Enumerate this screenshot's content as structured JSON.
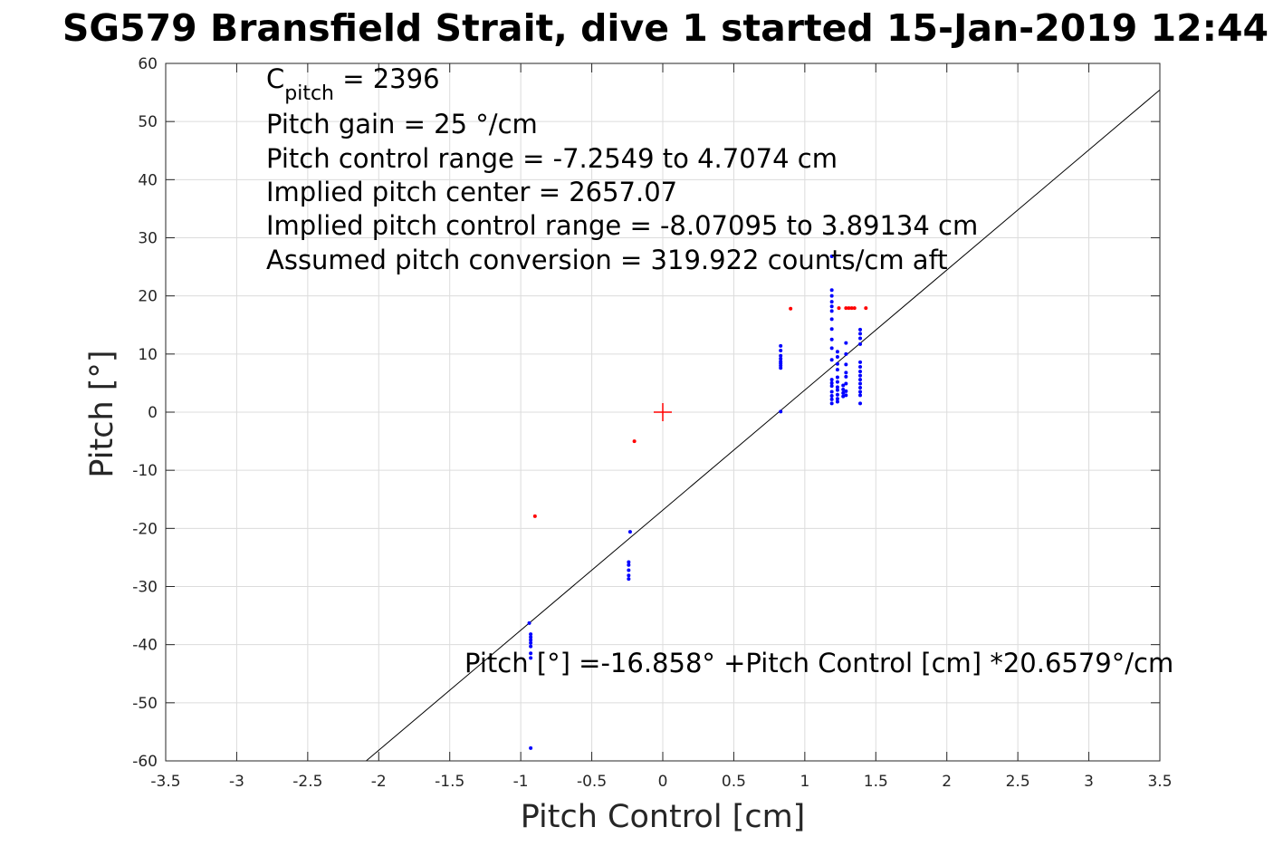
{
  "chart_data": {
    "type": "scatter",
    "title": "SG579 Bransfield Strait, dive 1 started 15-Jan-2019 12:44",
    "xlabel": "Pitch Control [cm]",
    "ylabel": "Pitch [°]",
    "xlim": [
      -3.5,
      3.5
    ],
    "ylim": [
      -60,
      60
    ],
    "grid": true,
    "x_ticks": [
      -3.5,
      -3,
      -2.5,
      -2,
      -1.5,
      -1,
      -0.5,
      0,
      0.5,
      1,
      1.5,
      2,
      2.5,
      3,
      3.5
    ],
    "x_tick_labels": [
      "-3.5",
      "-3",
      "-2.5",
      "-2",
      "-1.5",
      "-1",
      "-0.5",
      "0",
      "0.5",
      "1",
      "1.5",
      "2",
      "2.5",
      "3",
      "3.5"
    ],
    "y_ticks": [
      60,
      50,
      40,
      30,
      20,
      10,
      0,
      -10,
      -20,
      -30,
      -40,
      -50,
      -60
    ],
    "y_tick_labels": [
      "60",
      "50",
      "40",
      "30",
      "20",
      "10",
      "0",
      "-10",
      "-20",
      "-30",
      "-40",
      "-50",
      "-60"
    ],
    "annotations": {
      "c_pitch_main": "C",
      "c_pitch_sub": "pitch",
      "c_pitch_value": " = 2396",
      "line2": "Pitch gain = 25 °/cm",
      "line3": "Pitch control range = -7.2549 to 4.7074 cm",
      "line4": "Implied pitch center = 2657.07",
      "line5": "Implied pitch control range = -8.07095 to 3.89134 cm",
      "line6": "Assumed pitch conversion = 319.922 counts/cm aft",
      "fit_equation": "Pitch [°] =-16.858° +Pitch Control [cm] *20.6579°/cm"
    },
    "fit_line": {
      "intercept": -16.858,
      "slope": 20.6579,
      "color": "#000000"
    },
    "center_marker": {
      "x": 0,
      "y": 0,
      "color": "#ff0000",
      "marker": "plus"
    },
    "series": [
      {
        "color": "#0000ff",
        "points": [
          [
            -0.94,
            -36.3
          ],
          [
            -0.93,
            -38.2
          ],
          [
            -0.93,
            -38.7
          ],
          [
            -0.93,
            -39.2
          ],
          [
            -0.93,
            -39.7
          ],
          [
            -0.93,
            -40.3
          ],
          [
            -0.93,
            -41.5
          ],
          [
            -0.93,
            -42.3
          ],
          [
            -0.93,
            -57.8
          ],
          [
            -0.23,
            -20.6
          ],
          [
            -0.24,
            -25.8
          ],
          [
            -0.24,
            -26.3
          ],
          [
            -0.24,
            -27.2
          ],
          [
            -0.24,
            -28.1
          ],
          [
            -0.24,
            -28.7
          ],
          [
            0.83,
            0.1
          ],
          [
            0.83,
            7.6
          ],
          [
            0.83,
            8.0
          ],
          [
            0.83,
            8.4
          ],
          [
            0.83,
            8.7
          ],
          [
            0.83,
            9.2
          ],
          [
            0.83,
            9.7
          ],
          [
            0.83,
            10.6
          ],
          [
            0.83,
            11.4
          ],
          [
            1.19,
            1.5
          ],
          [
            1.19,
            2.2
          ],
          [
            1.19,
            2.8
          ],
          [
            1.19,
            3.5
          ],
          [
            1.19,
            4.5
          ],
          [
            1.19,
            5.0
          ],
          [
            1.19,
            5.6
          ],
          [
            1.19,
            9.0
          ],
          [
            1.19,
            11.0
          ],
          [
            1.19,
            12.5
          ],
          [
            1.19,
            14.3
          ],
          [
            1.19,
            16.0
          ],
          [
            1.19,
            17.4
          ],
          [
            1.19,
            18.2
          ],
          [
            1.19,
            19.0
          ],
          [
            1.19,
            20.0
          ],
          [
            1.19,
            21.0
          ],
          [
            1.19,
            26.8
          ],
          [
            1.23,
            1.8
          ],
          [
            1.23,
            2.3
          ],
          [
            1.23,
            3.0
          ],
          [
            1.23,
            3.8
          ],
          [
            1.23,
            4.3
          ],
          [
            1.23,
            5.2
          ],
          [
            1.23,
            6.0
          ],
          [
            1.23,
            7.3
          ],
          [
            1.23,
            8.3
          ],
          [
            1.23,
            9.5
          ],
          [
            1.23,
            10.4
          ],
          [
            1.27,
            2.7
          ],
          [
            1.27,
            3.3
          ],
          [
            1.27,
            3.9
          ],
          [
            1.27,
            4.6
          ],
          [
            1.29,
            2.9
          ],
          [
            1.29,
            3.6
          ],
          [
            1.29,
            4.9
          ],
          [
            1.29,
            6.1
          ],
          [
            1.29,
            6.8
          ],
          [
            1.29,
            8.2
          ],
          [
            1.29,
            10.0
          ],
          [
            1.29,
            11.9
          ],
          [
            1.39,
            1.5
          ],
          [
            1.39,
            2.9
          ],
          [
            1.39,
            3.5
          ],
          [
            1.39,
            4.2
          ],
          [
            1.39,
            4.9
          ],
          [
            1.39,
            5.6
          ],
          [
            1.39,
            6.3
          ],
          [
            1.39,
            7.0
          ],
          [
            1.39,
            7.8
          ],
          [
            1.39,
            8.6
          ],
          [
            1.39,
            11.7
          ],
          [
            1.39,
            12.7
          ],
          [
            1.39,
            13.5
          ],
          [
            1.39,
            14.2
          ]
        ]
      },
      {
        "color": "#ff0000",
        "points": [
          [
            -0.9,
            -17.9
          ],
          [
            -0.2,
            -5.0
          ],
          [
            0.9,
            17.8
          ],
          [
            1.24,
            17.9
          ],
          [
            1.29,
            17.9
          ],
          [
            1.31,
            17.9
          ],
          [
            1.33,
            17.9
          ],
          [
            1.35,
            17.9
          ],
          [
            1.43,
            17.9
          ]
        ]
      }
    ]
  }
}
